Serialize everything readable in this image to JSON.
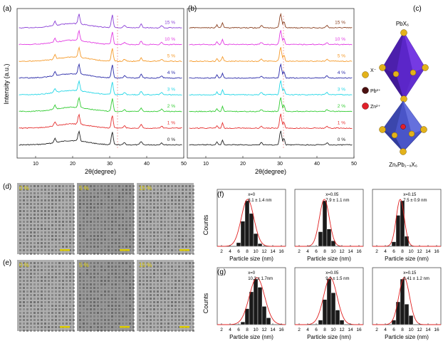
{
  "panels": {
    "a": {
      "letter": "(a)",
      "ylabel": "Intensity (a.u.)",
      "xlabel": "2θ(degree)",
      "xticks": [
        "10",
        "20",
        "30",
        "40",
        "50"
      ],
      "traces": [
        {
          "label": "0 %",
          "color": "#222222"
        },
        {
          "label": "1 %",
          "color": "#e53030"
        },
        {
          "label": "2 %",
          "color": "#33cc33"
        },
        {
          "label": "3 %",
          "color": "#22d6e6"
        },
        {
          "label": "4 %",
          "color": "#2a2aa8"
        },
        {
          "label": "5 %",
          "color": "#f59a2a"
        },
        {
          "label": "10 %",
          "color": "#e23ce2"
        },
        {
          "label": "15 %",
          "color": "#8a3fd6"
        }
      ]
    },
    "b": {
      "letter": "(b)",
      "xlabel": "2θ(degree)",
      "xticks": [
        "10",
        "20",
        "30",
        "40",
        "50"
      ],
      "traces": [
        {
          "label": "0 %",
          "color": "#222222"
        },
        {
          "label": "1 %",
          "color": "#e53030"
        },
        {
          "label": "2 %",
          "color": "#33cc33"
        },
        {
          "label": "3 %",
          "color": "#22d6e6"
        },
        {
          "label": "4 %",
          "color": "#2a2aa8"
        },
        {
          "label": "5 %",
          "color": "#f59a2a"
        },
        {
          "label": "10 %",
          "color": "#e23ce2"
        },
        {
          "label": "15 %",
          "color": "#8a4020"
        }
      ]
    },
    "c": {
      "letter": "(c)",
      "top_label": "PbX₆",
      "bottom_label": "ZnₓPb₁₋ₓX₆",
      "legend": [
        {
          "label": "X⁻",
          "color": "#e3b21a"
        },
        {
          "label": "Pb²⁺",
          "color": "#4a1010"
        },
        {
          "label": "Zn²⁺",
          "color": "#e0202a"
        }
      ]
    },
    "d": {
      "letter": "(d)",
      "labels": [
        "0 %",
        "5 %",
        "15 %"
      ]
    },
    "e": {
      "letter": "(e)",
      "labels": [
        "0 %",
        "5 %",
        "15 %"
      ]
    },
    "f": {
      "letter": "(f)",
      "ylabel": "Counts",
      "xlabel": "Particle size (nm)",
      "xticks": [
        "2",
        "4",
        "6",
        "8",
        "10",
        "12",
        "14",
        "16"
      ],
      "histograms": [
        {
          "x_label": "x=0",
          "size": "8.1 ± 1.4 nm",
          "mean": 8.1,
          "sd": 1.4,
          "bins": [
            [
              6,
              0.08
            ],
            [
              7,
              0.55
            ],
            [
              8,
              1.0
            ],
            [
              9,
              0.72
            ],
            [
              10,
              0.28
            ],
            [
              11,
              0.06
            ]
          ]
        },
        {
          "x_label": "x=0.05",
          "size": "7.9 ± 1.1 nm",
          "mean": 7.9,
          "sd": 1.1,
          "bins": [
            [
              7,
              0.32
            ],
            [
              8,
              1.0
            ],
            [
              9,
              0.38
            ],
            [
              10,
              0.12
            ]
          ]
        },
        {
          "x_label": "x=0.15",
          "size": "7.5 ± 0.9 nm",
          "mean": 7.5,
          "sd": 0.9,
          "bins": [
            [
              6,
              0.1
            ],
            [
              7,
              0.68
            ],
            [
              8,
              1.0
            ],
            [
              9,
              0.22
            ]
          ]
        }
      ]
    },
    "g": {
      "letter": "(g)",
      "ylabel": "Counts",
      "xlabel": "Particle size (nm)",
      "xticks": [
        "2",
        "4",
        "6",
        "8",
        "10",
        "12",
        "14",
        "16"
      ],
      "histograms": [
        {
          "x_label": "x=0",
          "size": "10.3 ± 1.7nm",
          "mean": 10.3,
          "sd": 1.7,
          "bins": [
            [
              7,
              0.06
            ],
            [
              8,
              0.35
            ],
            [
              9,
              0.72
            ],
            [
              10,
              1.0
            ],
            [
              11,
              0.82
            ],
            [
              12,
              0.4
            ],
            [
              13,
              0.15
            ]
          ]
        },
        {
          "x_label": "x=0.05",
          "size": "9.3 ± 1.5 nm",
          "mean": 9.3,
          "sd": 1.5,
          "bins": [
            [
              7,
              0.1
            ],
            [
              8,
              0.55
            ],
            [
              9,
              1.0
            ],
            [
              10,
              0.7
            ],
            [
              11,
              0.32
            ],
            [
              12,
              0.1
            ]
          ]
        },
        {
          "x_label": "x=0.15",
          "size": "8.41 ± 1.2 nm",
          "mean": 8.41,
          "sd": 1.2,
          "bins": [
            [
              6,
              0.1
            ],
            [
              7,
              0.5
            ],
            [
              8,
              1.0
            ],
            [
              9,
              0.45
            ],
            [
              10,
              0.2
            ]
          ]
        }
      ]
    }
  },
  "colors": {
    "gold": "#e3b21a",
    "purple": "#6a2fd6",
    "blue": "#4a55c8",
    "red_fit": "#e02020",
    "scale_bar": "#ddcc00"
  }
}
